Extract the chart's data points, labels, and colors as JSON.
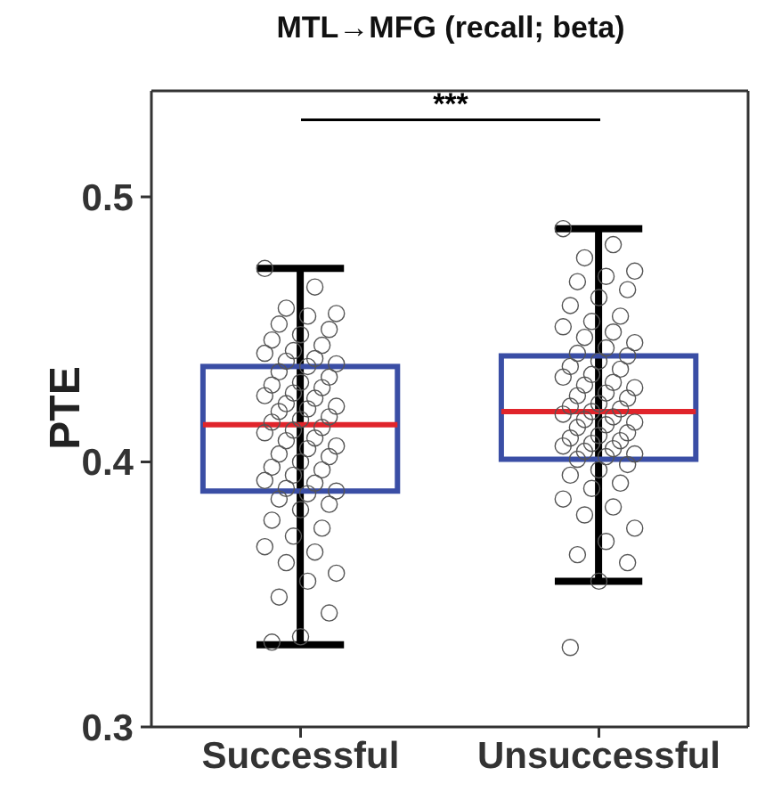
{
  "chart_data": {
    "type": "box",
    "title": "MTL→MFG (recall; beta)",
    "ylabel": "PTE",
    "categories": [
      "Successful",
      "Unsuccessful"
    ],
    "ylim": [
      0.3,
      0.54
    ],
    "yticks": [
      0.3,
      0.4,
      0.5
    ],
    "grid": false,
    "legend": false,
    "annotations": [
      "***"
    ],
    "series": [
      {
        "type": "box",
        "color": "#3a4ea5",
        "boxes": [
          {
            "low": 0.331,
            "q1": 0.389,
            "median": 0.414,
            "q3": 0.436,
            "high": 0.473
          },
          {
            "low": 0.355,
            "q1": 0.401,
            "median": 0.419,
            "q3": 0.44,
            "high": 0.488
          }
        ]
      },
      {
        "type": "scatter",
        "color": "#555555",
        "marker": "circle",
        "x": [
          "Successful",
          "Successful",
          "Successful",
          "Successful",
          "Successful",
          "Successful",
          "Successful",
          "Successful",
          "Successful",
          "Successful",
          "Successful",
          "Successful",
          "Successful",
          "Successful",
          "Successful",
          "Successful",
          "Successful",
          "Successful",
          "Successful",
          "Successful",
          "Successful",
          "Successful",
          "Successful",
          "Successful",
          "Successful",
          "Successful",
          "Successful",
          "Successful",
          "Successful",
          "Successful",
          "Successful",
          "Successful",
          "Successful",
          "Successful",
          "Successful",
          "Successful",
          "Successful",
          "Successful",
          "Successful",
          "Successful",
          "Successful",
          "Successful",
          "Successful",
          "Successful",
          "Successful",
          "Successful",
          "Successful",
          "Successful",
          "Successful",
          "Successful",
          "Successful",
          "Successful",
          "Successful",
          "Successful",
          "Successful",
          "Successful",
          "Successful",
          "Successful",
          "Successful",
          "Successful",
          "Successful",
          "Successful",
          "Successful",
          "Successful"
        ],
        "values": [
          0.473,
          0.466,
          0.458,
          0.456,
          0.455,
          0.452,
          0.45,
          0.448,
          0.446,
          0.444,
          0.442,
          0.441,
          0.439,
          0.438,
          0.437,
          0.436,
          0.434,
          0.432,
          0.43,
          0.429,
          0.428,
          0.426,
          0.425,
          0.424,
          0.422,
          0.421,
          0.42,
          0.419,
          0.417,
          0.416,
          0.415,
          0.413,
          0.412,
          0.411,
          0.409,
          0.408,
          0.406,
          0.405,
          0.403,
          0.402,
          0.4,
          0.398,
          0.397,
          0.395,
          0.393,
          0.392,
          0.39,
          0.389,
          0.388,
          0.386,
          0.384,
          0.382,
          0.378,
          0.375,
          0.372,
          0.368,
          0.366,
          0.362,
          0.358,
          0.355,
          0.349,
          0.343,
          0.334,
          0.332
        ]
      },
      {
        "type": "scatter",
        "color": "#555555",
        "marker": "circle",
        "x": [
          "Unsuccessful",
          "Unsuccessful",
          "Unsuccessful",
          "Unsuccessful",
          "Unsuccessful",
          "Unsuccessful",
          "Unsuccessful",
          "Unsuccessful",
          "Unsuccessful",
          "Unsuccessful",
          "Unsuccessful",
          "Unsuccessful",
          "Unsuccessful",
          "Unsuccessful",
          "Unsuccessful",
          "Unsuccessful",
          "Unsuccessful",
          "Unsuccessful",
          "Unsuccessful",
          "Unsuccessful",
          "Unsuccessful",
          "Unsuccessful",
          "Unsuccessful",
          "Unsuccessful",
          "Unsuccessful",
          "Unsuccessful",
          "Unsuccessful",
          "Unsuccessful",
          "Unsuccessful",
          "Unsuccessful",
          "Unsuccessful",
          "Unsuccessful",
          "Unsuccessful",
          "Unsuccessful",
          "Unsuccessful",
          "Unsuccessful",
          "Unsuccessful",
          "Unsuccessful",
          "Unsuccessful",
          "Unsuccessful",
          "Unsuccessful",
          "Unsuccessful",
          "Unsuccessful",
          "Unsuccessful",
          "Unsuccessful",
          "Unsuccessful",
          "Unsuccessful",
          "Unsuccessful",
          "Unsuccessful",
          "Unsuccessful",
          "Unsuccessful",
          "Unsuccessful",
          "Unsuccessful",
          "Unsuccessful",
          "Unsuccessful",
          "Unsuccessful",
          "Unsuccessful",
          "Unsuccessful",
          "Unsuccessful",
          "Unsuccessful",
          "Unsuccessful",
          "Unsuccessful",
          "Unsuccessful",
          "Unsuccessful"
        ],
        "values": [
          0.488,
          0.482,
          0.477,
          0.472,
          0.47,
          0.468,
          0.465,
          0.462,
          0.459,
          0.455,
          0.453,
          0.451,
          0.449,
          0.447,
          0.445,
          0.443,
          0.441,
          0.44,
          0.438,
          0.436,
          0.435,
          0.433,
          0.432,
          0.43,
          0.429,
          0.428,
          0.426,
          0.425,
          0.424,
          0.422,
          0.421,
          0.42,
          0.419,
          0.418,
          0.417,
          0.416,
          0.415,
          0.414,
          0.413,
          0.411,
          0.41,
          0.409,
          0.408,
          0.407,
          0.406,
          0.405,
          0.404,
          0.403,
          0.402,
          0.401,
          0.399,
          0.397,
          0.395,
          0.392,
          0.39,
          0.386,
          0.383,
          0.38,
          0.375,
          0.37,
          0.365,
          0.362,
          0.355,
          0.33
        ]
      }
    ]
  }
}
